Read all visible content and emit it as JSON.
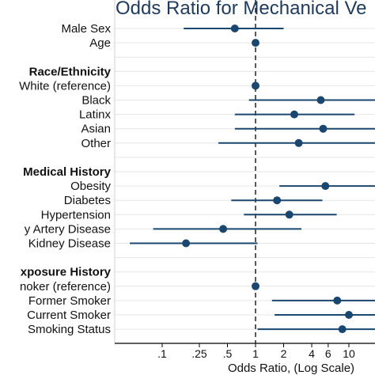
{
  "chart_data": {
    "type": "forest",
    "title": "Odds Ratio for Mechanical Ve",
    "xlabel": "Odds Ratio, (Log Scale)",
    "x_scale": "log",
    "xlim": [
      0.04,
      30
    ],
    "reference_line_x": 1,
    "grid": true,
    "marker_color": "#1a476f",
    "x_ticks": [
      {
        "value": 0.1,
        "label": ".1"
      },
      {
        "value": 0.25,
        "label": ".25"
      },
      {
        "value": 0.5,
        "label": ".5"
      },
      {
        "value": 1,
        "label": "1"
      },
      {
        "value": 2,
        "label": "2"
      },
      {
        "value": 4,
        "label": "4"
      },
      {
        "value": 6,
        "label": "6"
      },
      {
        "value": 10,
        "label": "10"
      }
    ],
    "rows": [
      {
        "label": "Male Sex",
        "header": false,
        "or": 0.6,
        "lo": 0.17,
        "hi": 2.0
      },
      {
        "label": "Age",
        "header": false,
        "or": 1.0,
        "lo": 0.98,
        "hi": 1.02
      },
      {
        "label": "",
        "header": false
      },
      {
        "label": "Race/Ethnicity",
        "header": true
      },
      {
        "label": "White (reference)",
        "header": false,
        "or": 1.0
      },
      {
        "label": "Black",
        "header": false,
        "or": 5.0,
        "lo": 0.85,
        "hi": 30
      },
      {
        "label": "Latinx",
        "header": false,
        "or": 2.6,
        "lo": 0.6,
        "hi": 11.5
      },
      {
        "label": "Asian",
        "header": false,
        "or": 5.3,
        "lo": 0.6,
        "hi": 30
      },
      {
        "label": "Other",
        "header": false,
        "or": 2.9,
        "lo": 0.4,
        "hi": 30
      },
      {
        "label": "",
        "header": false
      },
      {
        "label": "Medical History",
        "header": true
      },
      {
        "label": "Obesity",
        "header": false,
        "or": 5.6,
        "lo": 1.8,
        "hi": 30
      },
      {
        "label": "Diabetes",
        "header": false,
        "or": 1.7,
        "lo": 0.55,
        "hi": 5.2
      },
      {
        "label": "Hypertension",
        "header": false,
        "or": 2.3,
        "lo": 0.75,
        "hi": 7.4
      },
      {
        "label": "y Artery Disease",
        "header": false,
        "or": 0.45,
        "lo": 0.08,
        "hi": 3.1
      },
      {
        "label": "Kidney Disease",
        "header": false,
        "or": 0.18,
        "lo": 0.045,
        "hi": 1.05
      },
      {
        "label": "",
        "header": false
      },
      {
        "label": "xposure History",
        "header": true
      },
      {
        "label": "noker (reference)",
        "header": false,
        "or": 1.0
      },
      {
        "label": "Former Smoker",
        "header": false,
        "or": 7.5,
        "lo": 1.5,
        "hi": 30
      },
      {
        "label": "Current Smoker",
        "header": false,
        "or": 10.0,
        "lo": 1.6,
        "hi": 30
      },
      {
        "label": "Smoking Status",
        "header": false,
        "or": 8.5,
        "lo": 1.05,
        "hi": 30
      }
    ]
  }
}
